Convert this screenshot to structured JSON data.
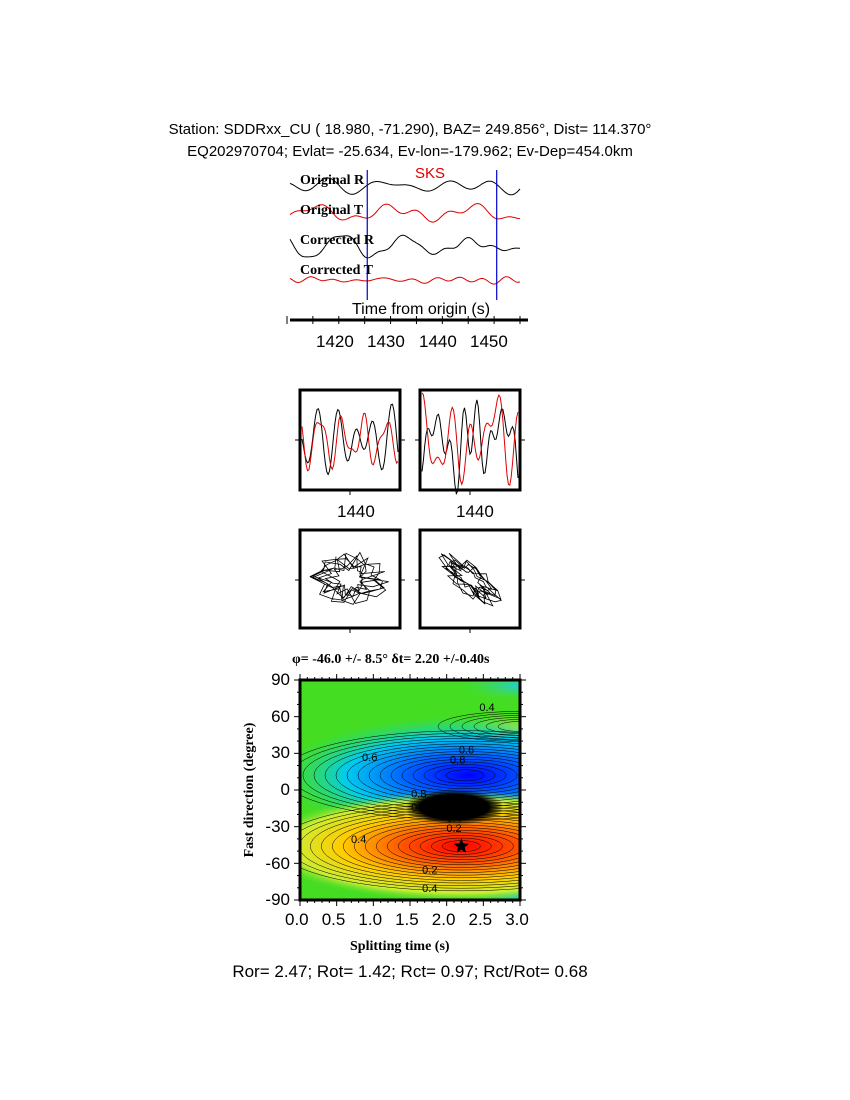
{
  "header": {
    "line1": "Station: SDDRxx_CU (  18.980,  -71.290), BAZ=  249.856°, Dist=  114.370°",
    "line2": "EQ202970704; Evlat= -25.634, Ev-lon=-179.962; Ev-Dep=454.0km"
  },
  "footer": "Ror= 2.47; Rot= 1.42; Rct= 0.97; Rct/Rot= 0.68",
  "colors": {
    "radial": "#000000",
    "transverse": "#dd0000",
    "marker": "#0000cc",
    "phase": "#dd0000"
  },
  "chart_data": [
    {
      "type": "line",
      "phase_label": "SKS",
      "trace_labels": [
        "Original R",
        "Original T",
        "Corrected R",
        "Corrected T"
      ],
      "xlabel": "Time from origin (s)",
      "xticks": [
        "1420",
        "1430",
        "1440",
        "1450"
      ],
      "xlim": [
        1410,
        1455
      ],
      "window_markers": [
        1425.5,
        1450.5
      ]
    },
    {
      "type": "line",
      "panels": [
        "original-waveforms",
        "corrected-waveforms"
      ],
      "xticks": [
        "1440",
        "1440"
      ]
    },
    {
      "type": "scatter",
      "panels": [
        "original-particle-motion",
        "corrected-particle-motion"
      ]
    },
    {
      "type": "heatmap",
      "title": "φ= -46.0 +/- 8.5° δt= 2.20 +/-0.40s",
      "xlabel": "Splitting time (s)",
      "ylabel": "Fast direction (degree)",
      "xlim": [
        0,
        3.0
      ],
      "ylim": [
        -90,
        90
      ],
      "xticks": [
        "0.0",
        "0.5",
        "1.0",
        "1.5",
        "2.0",
        "2.5",
        "3.0"
      ],
      "yticks": [
        "90",
        "60",
        "30",
        "0",
        "-30",
        "-60",
        "-90"
      ],
      "best_fit": {
        "dt": 2.2,
        "phi": -46.0
      },
      "contour_labels": [
        {
          "text": "0.4",
          "dt": 2.55,
          "phi": 68
        },
        {
          "text": "0.6",
          "dt": 0.95,
          "phi": 27
        },
        {
          "text": "0.6",
          "dt": 2.27,
          "phi": 33
        },
        {
          "text": "0.8",
          "dt": 2.15,
          "phi": 25
        },
        {
          "text": "0.8",
          "dt": 1.62,
          "phi": -3
        },
        {
          "text": "0.6",
          "dt": 1.62,
          "phi": -14
        },
        {
          "text": "0.4",
          "dt": 2.1,
          "phi": -23
        },
        {
          "text": "0.2",
          "dt": 2.1,
          "phi": -31
        },
        {
          "text": "0.4",
          "dt": 0.8,
          "phi": -40
        },
        {
          "text": "0.2",
          "dt": 1.77,
          "phi": -65
        },
        {
          "text": "0.4",
          "dt": 1.77,
          "phi": -80
        }
      ],
      "colormap": "rainbow (red=low, blue=high)"
    }
  ]
}
